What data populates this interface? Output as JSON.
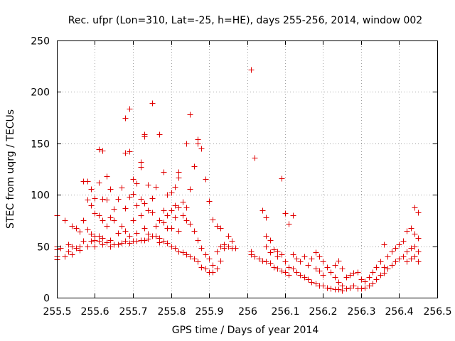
{
  "chart_data": {
    "type": "scatter",
    "title": "Rec. ufpr (Lon=310, Lat=-25, h=HE), days 255-256, 2014, window 002",
    "xlabel": "GPS time / Days of year 2014",
    "ylabel": "STEC from uqrg / TECUs",
    "xlim": [
      255.5,
      256.5
    ],
    "ylim": [
      0,
      250
    ],
    "xticks": [
      255.5,
      255.6,
      255.7,
      255.8,
      255.9,
      256,
      256.1,
      256.2,
      256.3,
      256.4,
      256.5
    ],
    "xtick_labels": [
      "255.5",
      "255.6",
      "255.7",
      "255.8",
      "255.9",
      "256",
      "256.1",
      "256.2",
      "256.3",
      "256.4",
      "256.5"
    ],
    "yticks": [
      0,
      50,
      100,
      150,
      200,
      250
    ],
    "ytick_labels": [
      "0",
      "50",
      "100",
      "150",
      "200",
      "250"
    ],
    "grid": true,
    "marker": "+",
    "color": "#e00000",
    "series": [
      {
        "name": "STEC",
        "points": [
          [
            255.5,
            80
          ],
          [
            255.5,
            50
          ],
          [
            255.5,
            47
          ],
          [
            255.5,
            40
          ],
          [
            255.5,
            37
          ],
          [
            255.51,
            48
          ],
          [
            255.52,
            75
          ],
          [
            255.52,
            40
          ],
          [
            255.53,
            52
          ],
          [
            255.53,
            45
          ],
          [
            255.54,
            70
          ],
          [
            255.54,
            50
          ],
          [
            255.54,
            42
          ],
          [
            255.55,
            68
          ],
          [
            255.55,
            48
          ],
          [
            255.56,
            64
          ],
          [
            255.56,
            50
          ],
          [
            255.56,
            46
          ],
          [
            255.57,
            113
          ],
          [
            255.57,
            75
          ],
          [
            255.57,
            55
          ],
          [
            255.58,
            113
          ],
          [
            255.58,
            95
          ],
          [
            255.58,
            66
          ],
          [
            255.58,
            50
          ],
          [
            255.59,
            106
          ],
          [
            255.59,
            90
          ],
          [
            255.59,
            62
          ],
          [
            255.59,
            55
          ],
          [
            255.6,
            97
          ],
          [
            255.6,
            82
          ],
          [
            255.6,
            60
          ],
          [
            255.6,
            56
          ],
          [
            255.6,
            50
          ],
          [
            255.61,
            144
          ],
          [
            255.61,
            112
          ],
          [
            255.61,
            80
          ],
          [
            255.61,
            60
          ],
          [
            255.61,
            55
          ],
          [
            255.62,
            143
          ],
          [
            255.62,
            96
          ],
          [
            255.62,
            75
          ],
          [
            255.62,
            58
          ],
          [
            255.62,
            52
          ],
          [
            255.63,
            118
          ],
          [
            255.63,
            95
          ],
          [
            255.63,
            70
          ],
          [
            255.63,
            54
          ],
          [
            255.64,
            106
          ],
          [
            255.64,
            78
          ],
          [
            255.64,
            56
          ],
          [
            255.64,
            50
          ],
          [
            255.65,
            86
          ],
          [
            255.65,
            75
          ],
          [
            255.65,
            52
          ],
          [
            255.66,
            96
          ],
          [
            255.66,
            63
          ],
          [
            255.66,
            52
          ],
          [
            255.67,
            107
          ],
          [
            255.67,
            70
          ],
          [
            255.67,
            53
          ],
          [
            255.68,
            175
          ],
          [
            255.68,
            141
          ],
          [
            255.68,
            87
          ],
          [
            255.68,
            65
          ],
          [
            255.68,
            55
          ],
          [
            255.69,
            184
          ],
          [
            255.69,
            142
          ],
          [
            255.69,
            98
          ],
          [
            255.69,
            60
          ],
          [
            255.69,
            53
          ],
          [
            255.7,
            115
          ],
          [
            255.7,
            101
          ],
          [
            255.7,
            75
          ],
          [
            255.7,
            55
          ],
          [
            255.71,
            111
          ],
          [
            255.71,
            90
          ],
          [
            255.71,
            63
          ],
          [
            255.71,
            55
          ],
          [
            255.72,
            132
          ],
          [
            255.72,
            127
          ],
          [
            255.72,
            96
          ],
          [
            255.72,
            80
          ],
          [
            255.72,
            56
          ],
          [
            255.73,
            159
          ],
          [
            255.73,
            157
          ],
          [
            255.73,
            92
          ],
          [
            255.73,
            68
          ],
          [
            255.73,
            56
          ],
          [
            255.74,
            110
          ],
          [
            255.74,
            85
          ],
          [
            255.74,
            62
          ],
          [
            255.74,
            57
          ],
          [
            255.75,
            189
          ],
          [
            255.75,
            97
          ],
          [
            255.75,
            83
          ],
          [
            255.75,
            60
          ],
          [
            255.76,
            108
          ],
          [
            255.76,
            70
          ],
          [
            255.76,
            60
          ],
          [
            255.77,
            159
          ],
          [
            255.77,
            75
          ],
          [
            255.77,
            58
          ],
          [
            255.77,
            54
          ],
          [
            255.78,
            122
          ],
          [
            255.78,
            85
          ],
          [
            255.78,
            73
          ],
          [
            255.78,
            55
          ],
          [
            255.79,
            100
          ],
          [
            255.79,
            80
          ],
          [
            255.79,
            68
          ],
          [
            255.79,
            53
          ],
          [
            255.8,
            102
          ],
          [
            255.8,
            85
          ],
          [
            255.8,
            68
          ],
          [
            255.8,
            50
          ],
          [
            255.81,
            108
          ],
          [
            255.81,
            90
          ],
          [
            255.81,
            78
          ],
          [
            255.81,
            48
          ],
          [
            255.82,
            122
          ],
          [
            255.82,
            117
          ],
          [
            255.82,
            88
          ],
          [
            255.82,
            65
          ],
          [
            255.82,
            45
          ],
          [
            255.83,
            93
          ],
          [
            255.83,
            80
          ],
          [
            255.83,
            44
          ],
          [
            255.84,
            150
          ],
          [
            255.84,
            88
          ],
          [
            255.84,
            75
          ],
          [
            255.84,
            42
          ],
          [
            255.85,
            178
          ],
          [
            255.85,
            106
          ],
          [
            255.85,
            72
          ],
          [
            255.85,
            40
          ],
          [
            255.86,
            128
          ],
          [
            255.86,
            65
          ],
          [
            255.86,
            38
          ],
          [
            255.87,
            154
          ],
          [
            255.87,
            150
          ],
          [
            255.87,
            56
          ],
          [
            255.87,
            35
          ],
          [
            255.88,
            145
          ],
          [
            255.88,
            48
          ],
          [
            255.88,
            30
          ],
          [
            255.89,
            115
          ],
          [
            255.89,
            42
          ],
          [
            255.89,
            28
          ],
          [
            255.9,
            94
          ],
          [
            255.9,
            38
          ],
          [
            255.9,
            25
          ],
          [
            255.91,
            76
          ],
          [
            255.91,
            32
          ],
          [
            255.91,
            25
          ],
          [
            255.92,
            70
          ],
          [
            255.92,
            45
          ],
          [
            255.92,
            28
          ],
          [
            255.93,
            68
          ],
          [
            255.93,
            50
          ],
          [
            255.93,
            36
          ],
          [
            255.94,
            52
          ],
          [
            255.94,
            48
          ],
          [
            255.95,
            60
          ],
          [
            255.95,
            50
          ],
          [
            255.96,
            55
          ],
          [
            255.96,
            48
          ],
          [
            255.97,
            48
          ],
          [
            256.01,
            222
          ],
          [
            256.01,
            45
          ],
          [
            256.01,
            42
          ],
          [
            256.02,
            136
          ],
          [
            256.02,
            40
          ],
          [
            256.03,
            38
          ],
          [
            256.04,
            85
          ],
          [
            256.04,
            36
          ],
          [
            256.05,
            78
          ],
          [
            256.05,
            60
          ],
          [
            256.05,
            50
          ],
          [
            256.05,
            35
          ],
          [
            256.06,
            56
          ],
          [
            256.06,
            44
          ],
          [
            256.06,
            34
          ],
          [
            256.07,
            47
          ],
          [
            256.07,
            30
          ],
          [
            256.08,
            45
          ],
          [
            256.08,
            40
          ],
          [
            256.08,
            28
          ],
          [
            256.09,
            116
          ],
          [
            256.09,
            42
          ],
          [
            256.09,
            26
          ],
          [
            256.1,
            82
          ],
          [
            256.1,
            35
          ],
          [
            256.1,
            25
          ],
          [
            256.11,
            72
          ],
          [
            256.11,
            30
          ],
          [
            256.11,
            22
          ],
          [
            256.12,
            80
          ],
          [
            256.12,
            42
          ],
          [
            256.12,
            28
          ],
          [
            256.13,
            38
          ],
          [
            256.13,
            25
          ],
          [
            256.14,
            35
          ],
          [
            256.14,
            22
          ],
          [
            256.15,
            40
          ],
          [
            256.15,
            20
          ],
          [
            256.16,
            32
          ],
          [
            256.16,
            18
          ],
          [
            256.17,
            38
          ],
          [
            256.17,
            15
          ],
          [
            256.18,
            44
          ],
          [
            256.18,
            28
          ],
          [
            256.18,
            14
          ],
          [
            256.19,
            40
          ],
          [
            256.19,
            26
          ],
          [
            256.19,
            12
          ],
          [
            256.2,
            35
          ],
          [
            256.2,
            22
          ],
          [
            256.2,
            12
          ],
          [
            256.21,
            30
          ],
          [
            256.21,
            10
          ],
          [
            256.22,
            25
          ],
          [
            256.22,
            9
          ],
          [
            256.23,
            32
          ],
          [
            256.23,
            20
          ],
          [
            256.23,
            8
          ],
          [
            256.24,
            36
          ],
          [
            256.24,
            15
          ],
          [
            256.24,
            8
          ],
          [
            256.25,
            28
          ],
          [
            256.25,
            12
          ],
          [
            256.25,
            7
          ],
          [
            256.26,
            20
          ],
          [
            256.26,
            9
          ],
          [
            256.27,
            22
          ],
          [
            256.27,
            10
          ],
          [
            256.28,
            24
          ],
          [
            256.28,
            12
          ],
          [
            256.29,
            25
          ],
          [
            256.29,
            9
          ],
          [
            256.3,
            18
          ],
          [
            256.3,
            9
          ],
          [
            256.31,
            16
          ],
          [
            256.31,
            10
          ],
          [
            256.32,
            20
          ],
          [
            256.32,
            12
          ],
          [
            256.33,
            25
          ],
          [
            256.33,
            14
          ],
          [
            256.34,
            30
          ],
          [
            256.34,
            18
          ],
          [
            256.35,
            35
          ],
          [
            256.35,
            22
          ],
          [
            256.36,
            52
          ],
          [
            256.36,
            30
          ],
          [
            256.36,
            24
          ],
          [
            256.37,
            40
          ],
          [
            256.37,
            28
          ],
          [
            256.38,
            45
          ],
          [
            256.38,
            32
          ],
          [
            256.39,
            48
          ],
          [
            256.39,
            35
          ],
          [
            256.4,
            52
          ],
          [
            256.4,
            38
          ],
          [
            256.41,
            55
          ],
          [
            256.41,
            40
          ],
          [
            256.42,
            65
          ],
          [
            256.42,
            45
          ],
          [
            256.42,
            35
          ],
          [
            256.43,
            68
          ],
          [
            256.43,
            48
          ],
          [
            256.43,
            38
          ],
          [
            256.44,
            88
          ],
          [
            256.44,
            62
          ],
          [
            256.44,
            50
          ],
          [
            256.44,
            40
          ],
          [
            256.45,
            83
          ],
          [
            256.45,
            58
          ],
          [
            256.45,
            45
          ],
          [
            256.45,
            35
          ]
        ]
      }
    ]
  }
}
